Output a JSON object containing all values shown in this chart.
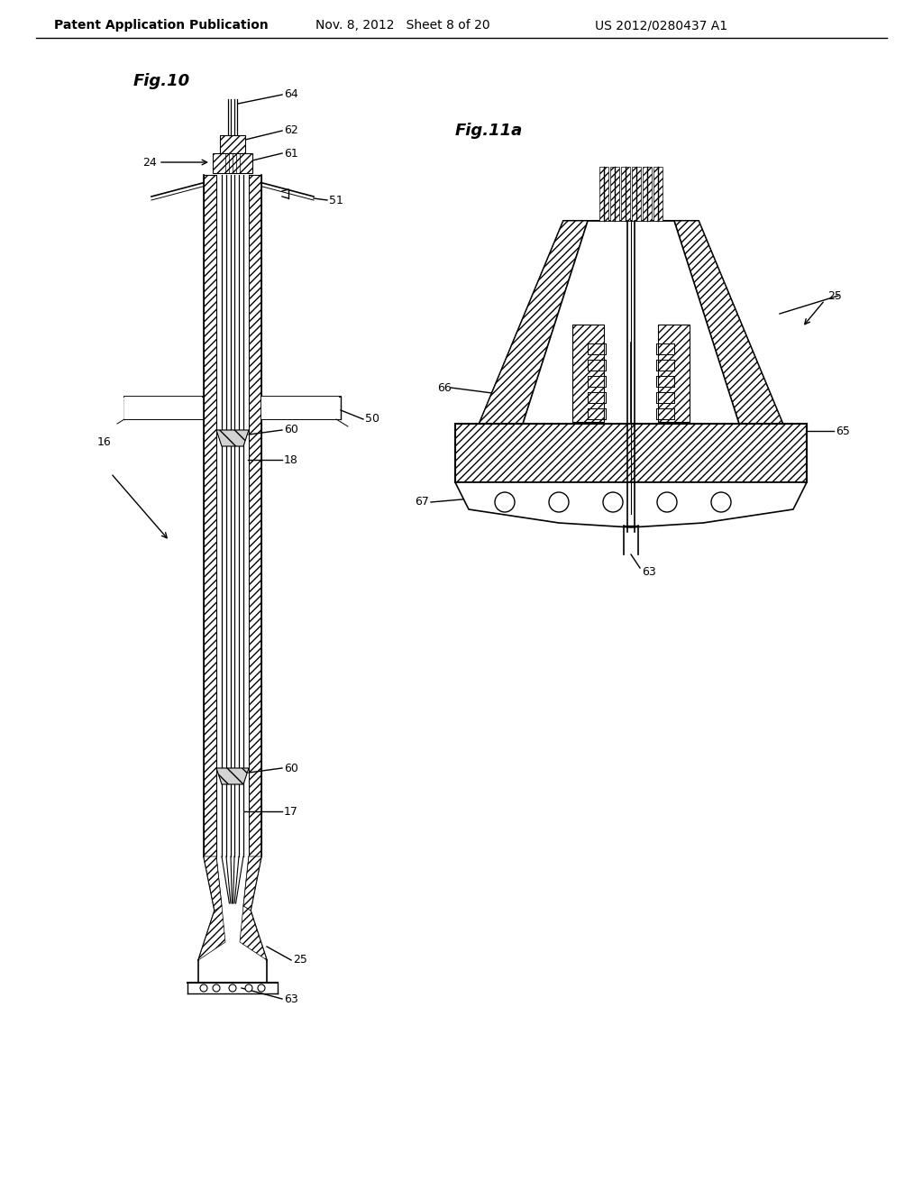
{
  "title_left": "Patent Application Publication",
  "title_mid": "Nov. 8, 2012   Sheet 8 of 20",
  "title_right": "US 2012/0280437 A1",
  "fig10_label": "Fig.10",
  "fig11a_label": "Fig.11a",
  "bg_color": "#ffffff",
  "line_color": "#000000",
  "hatch_color": "#555555",
  "label_fontsize": 11,
  "header_fontsize": 10
}
